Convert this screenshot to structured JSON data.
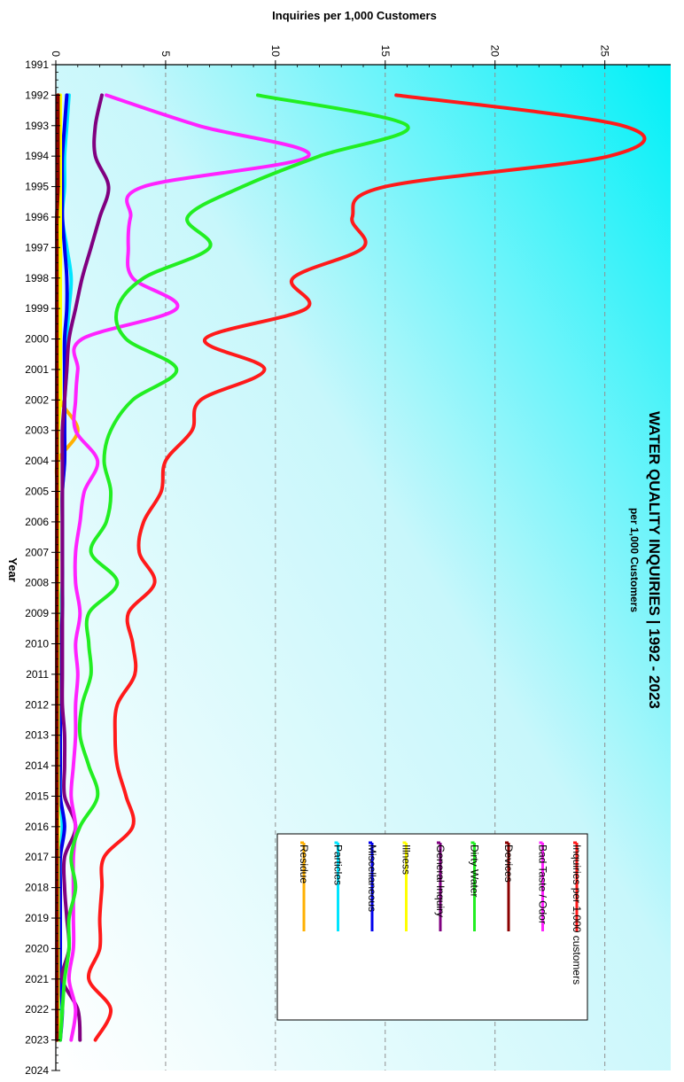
{
  "chart_data": {
    "type": "line",
    "title": "WATER QUALITY INQUIRIES  |  1992 - 2023",
    "subtitle": "per 1,000 Customers",
    "xlabel": "Year",
    "ylabel": "Inquiries per 1,000 Customers",
    "xlim": [
      1991,
      2024
    ],
    "ylim": [
      0,
      28
    ],
    "x_ticks": [
      "1991",
      "1992",
      "1993",
      "1994",
      "1995",
      "1996",
      "1997",
      "1998",
      "1999",
      "2000",
      "2001",
      "2002",
      "2003",
      "2004",
      "2005",
      "2006",
      "2007",
      "2008",
      "2009",
      "2010",
      "2011",
      "2012",
      "2013",
      "2014",
      "2015",
      "2016",
      "2017",
      "2018",
      "2019",
      "2020",
      "2021",
      "2022",
      "2023",
      "2024"
    ],
    "y_ticks": [
      "0",
      "5",
      "10",
      "15",
      "20",
      "25"
    ],
    "grid": "dashed vertical lines at 5, 10, 15, 20, 25",
    "legend_position": "bottom-right",
    "x": [
      1992,
      1993,
      1994,
      1995,
      1996,
      1997,
      1998,
      1999,
      2000,
      2001,
      2002,
      2003,
      2004,
      2005,
      2006,
      2007,
      2008,
      2009,
      2010,
      2011,
      2012,
      2013,
      2014,
      2015,
      2016,
      2017,
      2018,
      2019,
      2020,
      2021,
      2022,
      2023
    ],
    "series": [
      {
        "name": "Inquiries per 1,000 customers",
        "color": "#ff1a1a",
        "values": [
          15.5,
          25.8,
          25.2,
          15.0,
          13.5,
          14.0,
          10.8,
          11.4,
          6.8,
          9.5,
          6.6,
          6.2,
          5.0,
          4.8,
          4.0,
          3.8,
          4.5,
          3.3,
          3.5,
          3.6,
          2.8,
          2.7,
          2.8,
          3.2,
          3.5,
          2.2,
          2.1,
          2.0,
          2.0,
          1.5,
          2.5,
          1.8
        ]
      },
      {
        "name": "Bad Taste / Odor",
        "color": "#ff22ff",
        "values": [
          2.3,
          6.5,
          11.5,
          4.0,
          3.4,
          3.3,
          3.5,
          5.5,
          1.2,
          1.0,
          0.9,
          0.9,
          1.9,
          1.3,
          1.1,
          0.9,
          0.9,
          1.1,
          0.9,
          1.0,
          0.9,
          0.9,
          0.8,
          0.7,
          0.9,
          0.8,
          0.8,
          0.8,
          0.8,
          0.6,
          0.9,
          0.7
        ]
      },
      {
        "name": "Devices",
        "color": "#8b0000",
        "values": [
          0.1,
          0.1,
          0.1,
          0.1,
          0.05,
          0.05,
          0.05,
          0.05,
          0.05,
          0.05,
          0.05,
          0.05,
          0.05,
          0.05,
          0.05,
          0.05,
          0.05,
          0.05,
          0.05,
          0.05,
          0.05,
          0.05,
          0.05,
          0.05,
          0.05,
          0.05,
          0.05,
          0.05,
          0.05,
          0.05,
          0.05,
          0.05
        ]
      },
      {
        "name": "Dirty Water",
        "color": "#22ee22",
        "values": [
          9.2,
          16.0,
          12.0,
          8.5,
          6.0,
          7.0,
          4.0,
          2.8,
          3.2,
          5.5,
          3.5,
          2.5,
          2.2,
          2.5,
          2.3,
          1.6,
          2.8,
          1.5,
          1.5,
          1.6,
          1.2,
          1.1,
          1.5,
          1.9,
          1.1,
          0.7,
          0.9,
          0.6,
          0.6,
          0.4,
          0.3,
          0.2
        ]
      },
      {
        "name": "General Inquiry",
        "color": "#800080",
        "values": [
          2.1,
          1.8,
          1.8,
          2.4,
          2.0,
          1.6,
          1.2,
          0.9,
          0.6,
          0.5,
          0.4,
          0.3,
          0.3,
          0.3,
          0.3,
          0.3,
          0.3,
          0.3,
          0.3,
          0.3,
          0.3,
          0.4,
          0.4,
          0.4,
          0.9,
          0.4,
          0.4,
          0.5,
          0.6,
          0.3,
          1.0,
          1.1
        ]
      },
      {
        "name": "Illness",
        "color": "#ffff00",
        "values": [
          0.2,
          0.2,
          0.2,
          0.2,
          0.2,
          0.2,
          0.2,
          0.2,
          0.2,
          0.2,
          0.2,
          0.1,
          0.1,
          0.1,
          0.1,
          0.1,
          0.1,
          0.1,
          0.1,
          0.1,
          0.1,
          0.1,
          0.1,
          0.1,
          0.1,
          0.1,
          0.1,
          0.1,
          0.1,
          0.1,
          0.1,
          0.1
        ]
      },
      {
        "name": "Miscellaneous",
        "color": "#0000ee",
        "values": [
          0.5,
          0.4,
          0.3,
          0.3,
          0.3,
          0.4,
          0.5,
          0.5,
          0.4,
          0.4,
          0.4,
          0.4,
          0.4,
          0.3,
          0.3,
          0.3,
          0.3,
          0.3,
          0.2,
          0.2,
          0.2,
          0.2,
          0.2,
          0.2,
          0.4,
          0.2,
          0.2,
          0.2,
          0.2,
          0.2,
          0.3,
          0.2
        ]
      },
      {
        "name": "Particles",
        "color": "#00e5ff",
        "values": [
          0.6,
          0.5,
          0.4,
          0.4,
          0.3,
          0.5,
          0.7,
          0.6,
          0.5,
          0.5,
          0.4,
          0.4,
          0.4,
          0.3,
          0.3,
          0.3,
          0.3,
          0.2,
          0.2,
          0.2,
          0.2,
          0.2,
          0.2,
          0.2,
          0.3,
          0.2,
          0.2,
          0.2,
          0.2,
          0.2,
          0.2,
          0.2
        ]
      },
      {
        "name": "Residue",
        "color": "#ffb000",
        "values": [
          0.1,
          0.1,
          0.1,
          0.1,
          0.1,
          0.2,
          0.2,
          0.2,
          0.2,
          0.2,
          0.2,
          1.0,
          0.1,
          0.1,
          0.1,
          0.1,
          0.1,
          0.1,
          0.1,
          0.1,
          0.1,
          0.1,
          0.1,
          0.1,
          0.1,
          0.1,
          0.1,
          0.1,
          0.1,
          0.1,
          0.1,
          0.1
        ]
      }
    ]
  }
}
